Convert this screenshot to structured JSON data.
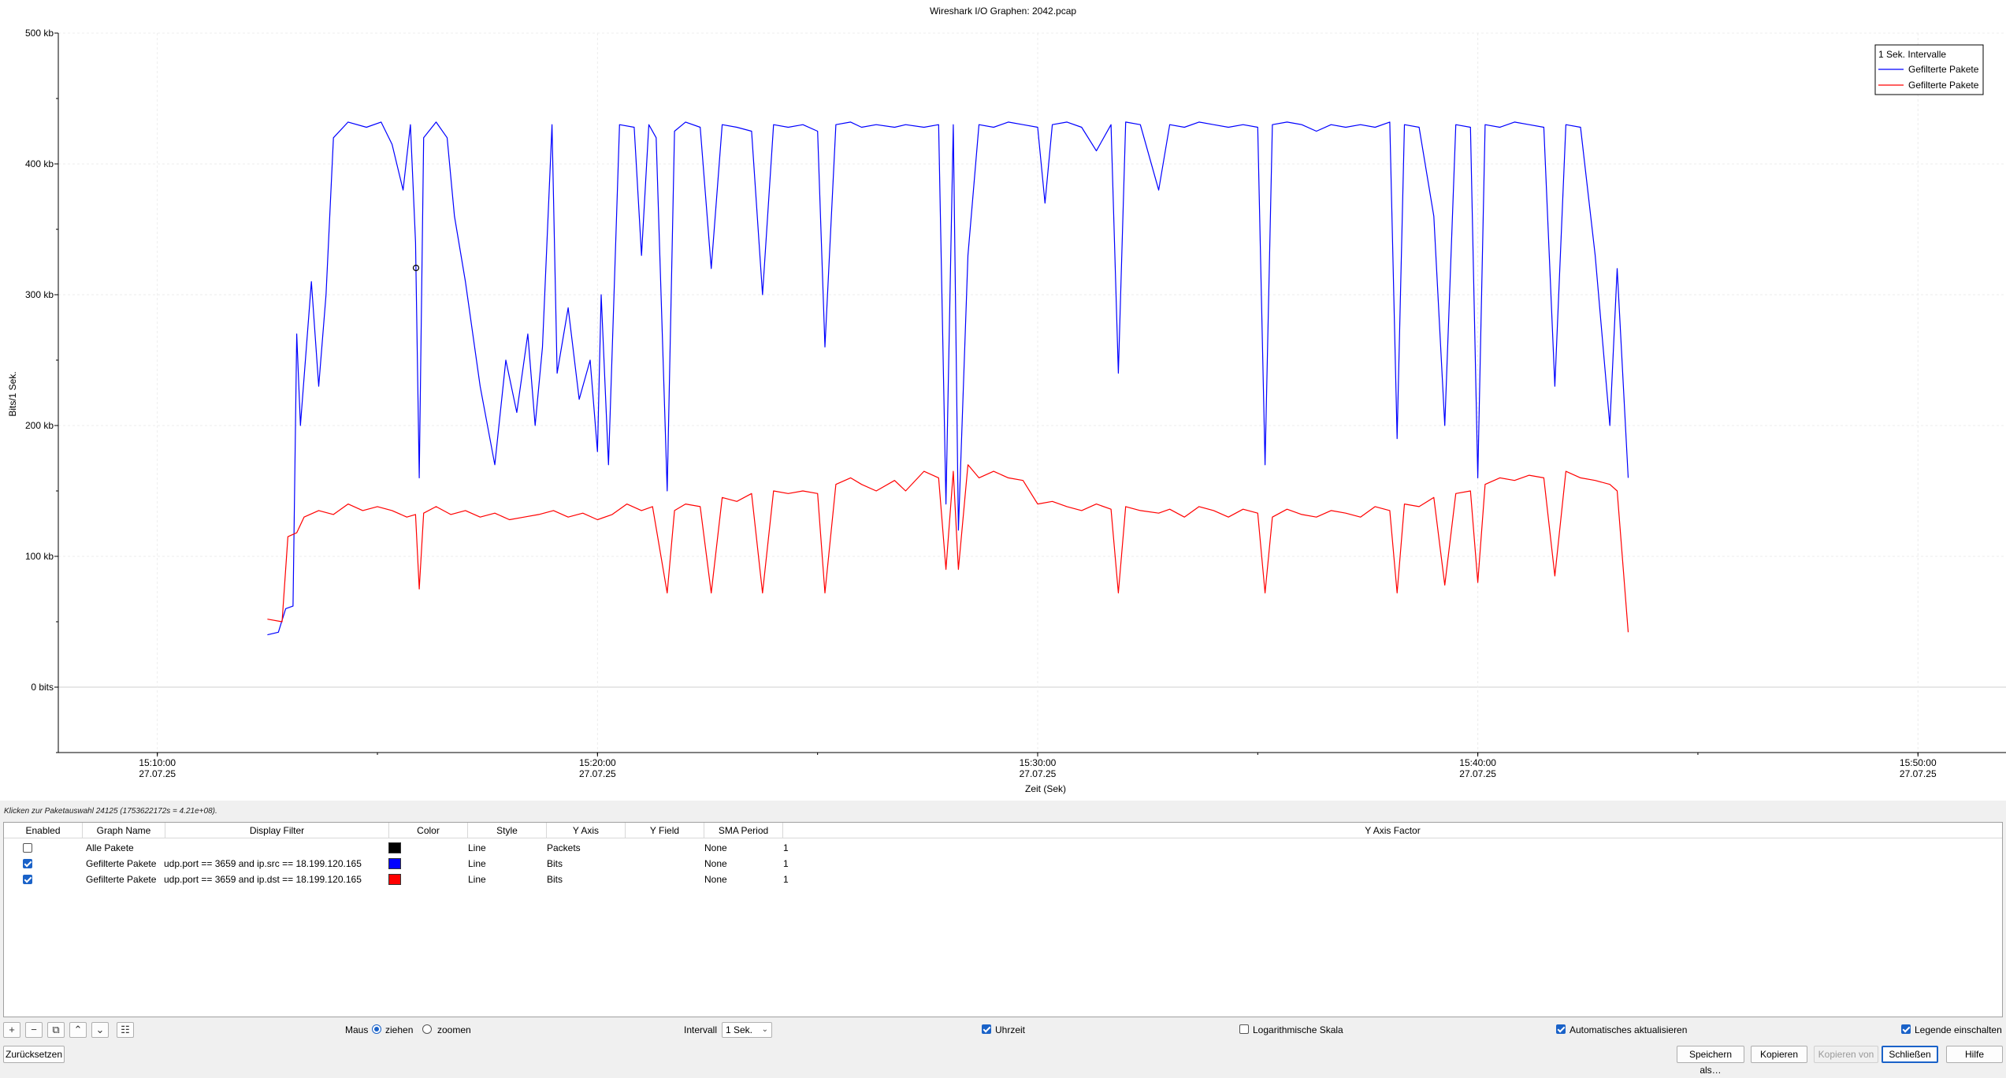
{
  "chart_data": {
    "type": "line",
    "title": "Wireshark I/O Graphen: 2042.pcap",
    "xlabel": "Zeit (Sek)",
    "ylabel": "Bits/1 Sek.",
    "y_unit": "kb",
    "ylim": [
      -50,
      500
    ],
    "y_ticks": [
      {
        "value": 0,
        "label": "0 bits"
      },
      {
        "value": 100,
        "label": "100 kb"
      },
      {
        "value": 200,
        "label": "200 kb"
      },
      {
        "value": 300,
        "label": "300 kb"
      },
      {
        "value": 400,
        "label": "400 kb"
      },
      {
        "value": 500,
        "label": "500 kb"
      }
    ],
    "x_range": [
      "15:07:45",
      "15:52:00"
    ],
    "x_ticks": [
      {
        "time": "15:10:00",
        "date": "27.07.25"
      },
      {
        "time": "15:20:00",
        "date": "27.07.25"
      },
      {
        "time": "15:30:00",
        "date": "27.07.25"
      },
      {
        "time": "15:40:00",
        "date": "27.07.25"
      },
      {
        "time": "15:50:00",
        "date": "27.07.25"
      }
    ],
    "grid": true,
    "legend_position": "top-right",
    "legend_title": "1 Sek. Intervalle",
    "series": [
      {
        "name": "Gefilterte Pakete",
        "color": "#0000ff",
        "points": [
          [
            "15:12:30",
            40
          ],
          [
            "15:12:45",
            42
          ],
          [
            "15:12:55",
            60
          ],
          [
            "15:13:05",
            62
          ],
          [
            "15:13:10",
            270
          ],
          [
            "15:13:15",
            200
          ],
          [
            "15:13:30",
            310
          ],
          [
            "15:13:40",
            230
          ],
          [
            "15:13:50",
            300
          ],
          [
            "15:14:00",
            420
          ],
          [
            "15:14:20",
            432
          ],
          [
            "15:14:45",
            428
          ],
          [
            "15:15:05",
            432
          ],
          [
            "15:15:20",
            415
          ],
          [
            "15:15:35",
            380
          ],
          [
            "15:15:45",
            430
          ],
          [
            "15:15:52",
            340
          ],
          [
            "15:15:57",
            160
          ],
          [
            "15:16:03",
            420
          ],
          [
            "15:16:20",
            432
          ],
          [
            "15:16:35",
            420
          ],
          [
            "15:16:45",
            360
          ],
          [
            "15:17:00",
            310
          ],
          [
            "15:17:20",
            230
          ],
          [
            "15:17:40",
            170
          ],
          [
            "15:17:55",
            250
          ],
          [
            "15:18:10",
            210
          ],
          [
            "15:18:25",
            270
          ],
          [
            "15:18:35",
            200
          ],
          [
            "15:18:45",
            260
          ],
          [
            "15:18:58",
            430
          ],
          [
            "15:19:05",
            240
          ],
          [
            "15:19:20",
            290
          ],
          [
            "15:19:35",
            220
          ],
          [
            "15:19:50",
            250
          ],
          [
            "15:20:00",
            180
          ],
          [
            "15:20:05",
            300
          ],
          [
            "15:20:15",
            170
          ],
          [
            "15:20:30",
            430
          ],
          [
            "15:20:50",
            428
          ],
          [
            "15:21:00",
            330
          ],
          [
            "15:21:10",
            430
          ],
          [
            "15:21:20",
            420
          ],
          [
            "15:21:35",
            150
          ],
          [
            "15:21:45",
            425
          ],
          [
            "15:22:00",
            432
          ],
          [
            "15:22:20",
            428
          ],
          [
            "15:22:35",
            320
          ],
          [
            "15:22:50",
            430
          ],
          [
            "15:23:10",
            428
          ],
          [
            "15:23:30",
            425
          ],
          [
            "15:23:45",
            300
          ],
          [
            "15:24:00",
            430
          ],
          [
            "15:24:20",
            428
          ],
          [
            "15:24:40",
            430
          ],
          [
            "15:25:00",
            425
          ],
          [
            "15:25:10",
            260
          ],
          [
            "15:25:25",
            430
          ],
          [
            "15:25:45",
            432
          ],
          [
            "15:26:00",
            428
          ],
          [
            "15:26:20",
            430
          ],
          [
            "15:26:45",
            428
          ],
          [
            "15:27:00",
            430
          ],
          [
            "15:27:25",
            428
          ],
          [
            "15:27:45",
            430
          ],
          [
            "15:27:55",
            140
          ],
          [
            "15:28:05",
            430
          ],
          [
            "15:28:12",
            120
          ],
          [
            "15:28:25",
            330
          ],
          [
            "15:28:40",
            430
          ],
          [
            "15:29:00",
            428
          ],
          [
            "15:29:20",
            432
          ],
          [
            "15:29:40",
            430
          ],
          [
            "15:30:00",
            428
          ],
          [
            "15:30:10",
            370
          ],
          [
            "15:30:20",
            430
          ],
          [
            "15:30:40",
            432
          ],
          [
            "15:31:00",
            428
          ],
          [
            "15:31:20",
            410
          ],
          [
            "15:31:40",
            430
          ],
          [
            "15:31:50",
            240
          ],
          [
            "15:32:00",
            432
          ],
          [
            "15:32:20",
            430
          ],
          [
            "15:32:45",
            380
          ],
          [
            "15:33:00",
            430
          ],
          [
            "15:33:20",
            428
          ],
          [
            "15:33:40",
            432
          ],
          [
            "15:34:00",
            430
          ],
          [
            "15:34:20",
            428
          ],
          [
            "15:34:40",
            430
          ],
          [
            "15:35:00",
            428
          ],
          [
            "15:35:10",
            170
          ],
          [
            "15:35:20",
            430
          ],
          [
            "15:35:40",
            432
          ],
          [
            "15:36:00",
            430
          ],
          [
            "15:36:20",
            425
          ],
          [
            "15:36:40",
            430
          ],
          [
            "15:37:00",
            428
          ],
          [
            "15:37:20",
            430
          ],
          [
            "15:37:40",
            428
          ],
          [
            "15:38:00",
            432
          ],
          [
            "15:38:10",
            190
          ],
          [
            "15:38:20",
            430
          ],
          [
            "15:38:40",
            428
          ],
          [
            "15:39:00",
            360
          ],
          [
            "15:39:15",
            200
          ],
          [
            "15:39:30",
            430
          ],
          [
            "15:39:50",
            428
          ],
          [
            "15:40:00",
            160
          ],
          [
            "15:40:10",
            430
          ],
          [
            "15:40:30",
            428
          ],
          [
            "15:40:50",
            432
          ],
          [
            "15:41:10",
            430
          ],
          [
            "15:41:30",
            428
          ],
          [
            "15:41:45",
            230
          ],
          [
            "15:42:00",
            430
          ],
          [
            "15:42:20",
            428
          ],
          [
            "15:42:40",
            330
          ],
          [
            "15:43:00",
            200
          ],
          [
            "15:43:10",
            320
          ],
          [
            "15:43:25",
            160
          ]
        ]
      },
      {
        "name": "Gefilterte Pakete",
        "color": "#ff0000",
        "points": [
          [
            "15:12:30",
            52
          ],
          [
            "15:12:50",
            50
          ],
          [
            "15:12:58",
            115
          ],
          [
            "15:13:10",
            118
          ],
          [
            "15:13:20",
            130
          ],
          [
            "15:13:40",
            135
          ],
          [
            "15:14:00",
            132
          ],
          [
            "15:14:20",
            140
          ],
          [
            "15:14:40",
            135
          ],
          [
            "15:15:00",
            138
          ],
          [
            "15:15:20",
            135
          ],
          [
            "15:15:40",
            130
          ],
          [
            "15:15:52",
            132
          ],
          [
            "15:15:57",
            75
          ],
          [
            "15:16:03",
            133
          ],
          [
            "15:16:20",
            138
          ],
          [
            "15:16:40",
            132
          ],
          [
            "15:17:00",
            135
          ],
          [
            "15:17:20",
            130
          ],
          [
            "15:17:40",
            133
          ],
          [
            "15:18:00",
            128
          ],
          [
            "15:18:20",
            130
          ],
          [
            "15:18:40",
            132
          ],
          [
            "15:19:00",
            135
          ],
          [
            "15:19:20",
            130
          ],
          [
            "15:19:40",
            133
          ],
          [
            "15:20:00",
            128
          ],
          [
            "15:20:20",
            132
          ],
          [
            "15:20:40",
            140
          ],
          [
            "15:21:00",
            135
          ],
          [
            "15:21:15",
            138
          ],
          [
            "15:21:35",
            72
          ],
          [
            "15:21:45",
            135
          ],
          [
            "15:22:00",
            140
          ],
          [
            "15:22:20",
            138
          ],
          [
            "15:22:35",
            72
          ],
          [
            "15:22:50",
            145
          ],
          [
            "15:23:10",
            142
          ],
          [
            "15:23:30",
            148
          ],
          [
            "15:23:45",
            72
          ],
          [
            "15:24:00",
            150
          ],
          [
            "15:24:20",
            148
          ],
          [
            "15:24:40",
            150
          ],
          [
            "15:25:00",
            148
          ],
          [
            "15:25:10",
            72
          ],
          [
            "15:25:25",
            155
          ],
          [
            "15:25:45",
            160
          ],
          [
            "15:26:00",
            155
          ],
          [
            "15:26:20",
            150
          ],
          [
            "15:26:45",
            158
          ],
          [
            "15:27:00",
            150
          ],
          [
            "15:27:25",
            165
          ],
          [
            "15:27:45",
            160
          ],
          [
            "15:27:55",
            90
          ],
          [
            "15:28:05",
            165
          ],
          [
            "15:28:12",
            90
          ],
          [
            "15:28:25",
            170
          ],
          [
            "15:28:40",
            160
          ],
          [
            "15:29:00",
            165
          ],
          [
            "15:29:20",
            160
          ],
          [
            "15:29:40",
            158
          ],
          [
            "15:30:00",
            140
          ],
          [
            "15:30:20",
            142
          ],
          [
            "15:30:40",
            138
          ],
          [
            "15:31:00",
            135
          ],
          [
            "15:31:20",
            140
          ],
          [
            "15:31:40",
            136
          ],
          [
            "15:31:50",
            72
          ],
          [
            "15:32:00",
            138
          ],
          [
            "15:32:20",
            135
          ],
          [
            "15:32:45",
            133
          ],
          [
            "15:33:00",
            136
          ],
          [
            "15:33:20",
            130
          ],
          [
            "15:33:40",
            138
          ],
          [
            "15:34:00",
            135
          ],
          [
            "15:34:20",
            130
          ],
          [
            "15:34:40",
            136
          ],
          [
            "15:35:00",
            133
          ],
          [
            "15:35:10",
            72
          ],
          [
            "15:35:20",
            130
          ],
          [
            "15:35:40",
            136
          ],
          [
            "15:36:00",
            132
          ],
          [
            "15:36:20",
            130
          ],
          [
            "15:36:40",
            135
          ],
          [
            "15:37:00",
            133
          ],
          [
            "15:37:20",
            130
          ],
          [
            "15:37:40",
            138
          ],
          [
            "15:38:00",
            135
          ],
          [
            "15:38:10",
            72
          ],
          [
            "15:38:20",
            140
          ],
          [
            "15:38:40",
            138
          ],
          [
            "15:39:00",
            145
          ],
          [
            "15:39:15",
            78
          ],
          [
            "15:39:30",
            148
          ],
          [
            "15:39:50",
            150
          ],
          [
            "15:40:00",
            80
          ],
          [
            "15:40:10",
            155
          ],
          [
            "15:40:30",
            160
          ],
          [
            "15:40:50",
            158
          ],
          [
            "15:41:10",
            162
          ],
          [
            "15:41:30",
            160
          ],
          [
            "15:41:45",
            85
          ],
          [
            "15:42:00",
            165
          ],
          [
            "15:42:20",
            160
          ],
          [
            "15:42:40",
            158
          ],
          [
            "15:43:00",
            155
          ],
          [
            "15:43:10",
            150
          ],
          [
            "15:43:25",
            42
          ]
        ]
      }
    ]
  },
  "status_hint": "Klicken zur Paketauswahl 24125 (1753622172s = 4.21e+08).",
  "table": {
    "headers": [
      "Enabled",
      "Graph Name",
      "Display Filter",
      "Color",
      "Style",
      "Y Axis",
      "Y Field",
      "SMA Period",
      "Y Axis Factor"
    ],
    "rows": [
      {
        "enabled": false,
        "name": "Alle Pakete",
        "filter": "",
        "color": "#000000",
        "style": "Line",
        "y_axis": "Packets",
        "y_field": "",
        "sma": "None",
        "factor": "1"
      },
      {
        "enabled": true,
        "name": "Gefilterte Pakete",
        "filter": "udp.port == 3659 and ip.src == 18.199.120.165",
        "color": "#0000ff",
        "style": "Line",
        "y_axis": "Bits",
        "y_field": "",
        "sma": "None",
        "factor": "1"
      },
      {
        "enabled": true,
        "name": "Gefilterte Pakete",
        "filter": "udp.port == 3659 and ip.dst  == 18.199.120.165",
        "color": "#ff0000",
        "style": "Line",
        "y_axis": "Bits",
        "y_field": "",
        "sma": "None",
        "factor": "1"
      }
    ]
  },
  "toolbar": {
    "icons": [
      "plus-icon",
      "minus-icon",
      "copy-icon",
      "up-arrow-icon",
      "down-arrow-icon",
      "clear-icon"
    ],
    "mouse_label": "Maus",
    "drag_label": "ziehen",
    "zoom_label": "zoomen",
    "mouse_mode": "ziehen",
    "interval_label": "Intervall",
    "interval_value": "1 Sek.",
    "time_of_day_label": "Uhrzeit",
    "time_of_day_checked": true,
    "log_scale_label": "Logarithmische Skala",
    "log_scale_checked": false,
    "auto_update_label": "Automatisches aktualisieren",
    "auto_update_checked": true,
    "legend_label": "Legende einschalten",
    "legend_checked": true
  },
  "buttons": {
    "reset": "Zurücksetzen",
    "save_as": "Speichern als…",
    "copy": "Kopieren",
    "copy_from": "Kopieren von",
    "close": "Schließen",
    "help": "Hilfe"
  }
}
